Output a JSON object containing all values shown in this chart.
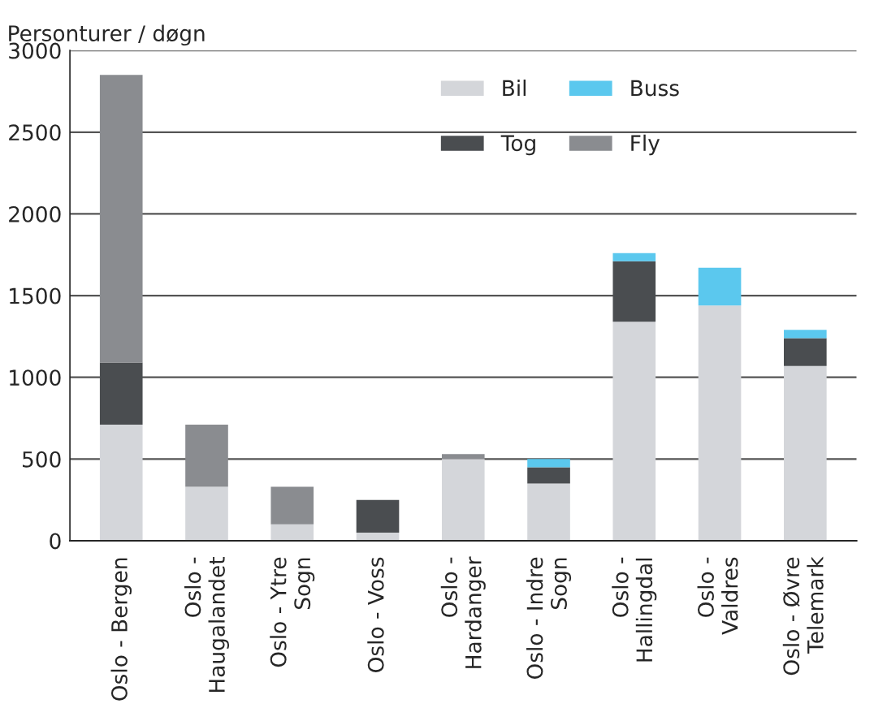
{
  "chart_data": {
    "type": "bar",
    "stacked": true,
    "ylabel": "Personturer / døgn",
    "categories": [
      "Oslo - Bergen",
      "Oslo -\nHaugalandet",
      "Oslo - Ytre\nSogn",
      "Oslo - Voss",
      "Oslo -\nHardanger",
      "Oslo - Indre\nSogn",
      "Oslo -\nHallingdal",
      "Oslo -\nValdres",
      "Oslo - Øvre\nTelemark"
    ],
    "series": [
      {
        "name": "Bil",
        "color": "#d4d6da",
        "values": [
          710,
          330,
          100,
          50,
          500,
          350,
          1340,
          1440,
          1070
        ]
      },
      {
        "name": "Tog",
        "color": "#4a4d50",
        "values": [
          380,
          0,
          0,
          200,
          0,
          100,
          370,
          0,
          170
        ]
      },
      {
        "name": "Buss",
        "color": "#5bc8ee",
        "values": [
          0,
          0,
          0,
          0,
          0,
          50,
          50,
          230,
          50
        ]
      },
      {
        "name": "Fly",
        "color": "#8a8c90",
        "values": [
          1760,
          380,
          230,
          0,
          30,
          0,
          0,
          0,
          0
        ]
      }
    ],
    "ylim": [
      0,
      3000
    ],
    "yticks": [
      0,
      500,
      1000,
      1500,
      2000,
      2500,
      3000
    ],
    "grid": "y",
    "legend": "top right"
  }
}
